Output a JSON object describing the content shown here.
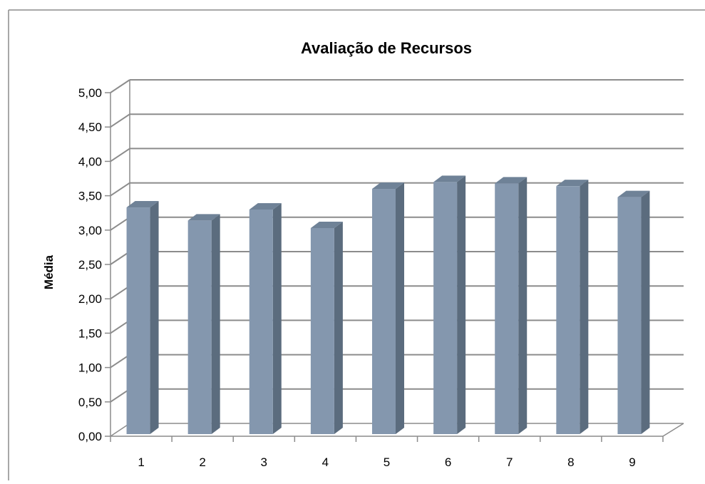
{
  "chart_data": {
    "type": "bar",
    "title": "Avaliação de Recursos",
    "ylabel": "Média",
    "xlabel": "",
    "categories": [
      "1",
      "2",
      "3",
      "4",
      "5",
      "6",
      "7",
      "8",
      "9"
    ],
    "values": [
      3.35,
      3.16,
      3.32,
      3.05,
      3.62,
      3.72,
      3.7,
      3.66,
      3.5
    ],
    "ylim": [
      0,
      5
    ],
    "y_ticks": [
      "0,00",
      "0,50",
      "1,00",
      "1,50",
      "2,00",
      "2,50",
      "3,00",
      "3,50",
      "4,00",
      "4,50",
      "5,00"
    ],
    "grid": true,
    "legend": "none",
    "style": "3d-column",
    "colors": {
      "bar_front": "#8497AE",
      "bar_side": "#5B6C7E",
      "bar_top": "#6F8297",
      "grid": "#8C8C8C",
      "axis": "#8C8C8C",
      "frame": "#8C8C8C"
    }
  }
}
